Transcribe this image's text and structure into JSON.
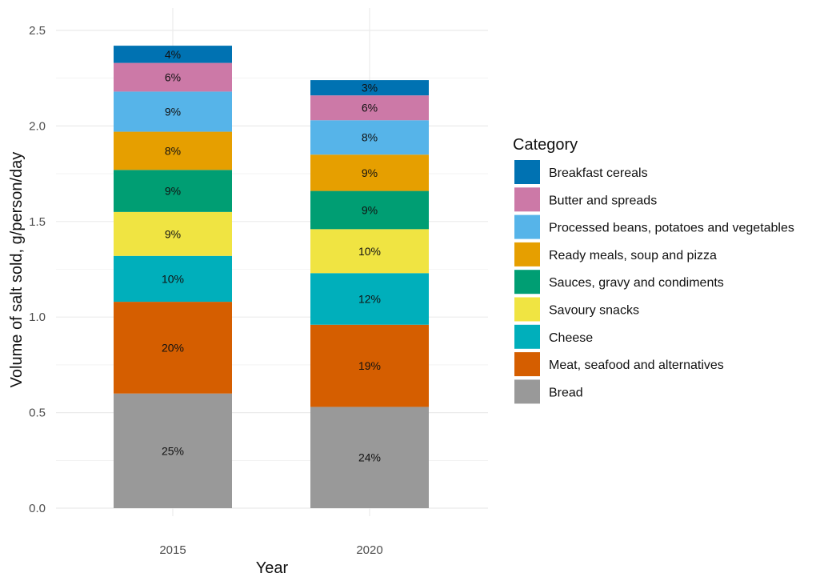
{
  "chart_data": {
    "type": "bar",
    "stacked": true,
    "categories": [
      "2015",
      "2020"
    ],
    "xlabel": "Year",
    "ylabel": "Volume of salt sold, g/person/day",
    "ylim": [
      0,
      2.5
    ],
    "yticks": [
      "0.0",
      "0.5",
      "1.0",
      "1.5",
      "2.0",
      "2.5"
    ],
    "grid": true,
    "legend": {
      "title": "Category",
      "placement": "right"
    },
    "series": [
      {
        "name": "Bread",
        "color": "#999999",
        "values": [
          0.6,
          0.53
        ],
        "labels": [
          "25%",
          "24%"
        ]
      },
      {
        "name": "Meat, seafood and alternatives",
        "color": "#D55E00",
        "values": [
          0.48,
          0.43
        ],
        "labels": [
          "20%",
          "19%"
        ]
      },
      {
        "name": "Cheese",
        "color": "#00AFBB",
        "values": [
          0.24,
          0.27
        ],
        "labels": [
          "10%",
          "12%"
        ]
      },
      {
        "name": "Savoury snacks",
        "color": "#F0E442",
        "values": [
          0.23,
          0.23
        ],
        "labels": [
          "9%",
          "10%"
        ]
      },
      {
        "name": "Sauces, gravy and condiments",
        "color": "#009E73",
        "values": [
          0.22,
          0.2
        ],
        "labels": [
          "9%",
          "9%"
        ]
      },
      {
        "name": "Ready meals, soup and pizza",
        "color": "#E69F00",
        "values": [
          0.2,
          0.19
        ],
        "labels": [
          "8%",
          "9%"
        ]
      },
      {
        "name": "Processed beans, potatoes and vegetables",
        "color": "#56B4E9",
        "values": [
          0.21,
          0.18
        ],
        "labels": [
          "9%",
          "8%"
        ]
      },
      {
        "name": "Butter and spreads",
        "color": "#CC79A7",
        "values": [
          0.15,
          0.13
        ],
        "labels": [
          "6%",
          "6%"
        ]
      },
      {
        "name": "Breakfast cereals",
        "color": "#0072B2",
        "values": [
          0.09,
          0.08
        ],
        "labels": [
          "4%",
          "3%"
        ]
      }
    ]
  }
}
